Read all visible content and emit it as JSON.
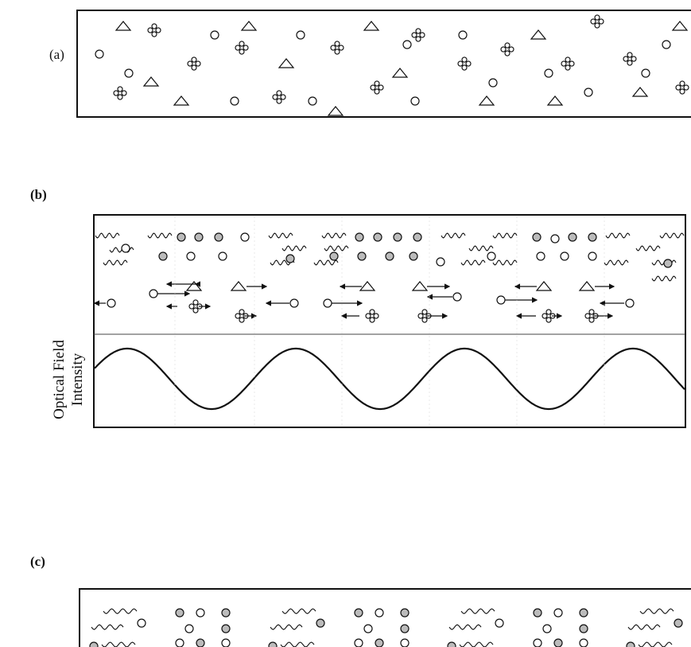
{
  "panels": [
    {
      "label": "(a)"
    },
    {
      "label": "(b)",
      "y_label": [
        "Optical Field",
        "Intensity"
      ]
    },
    {
      "label": "(c)"
    }
  ]
}
